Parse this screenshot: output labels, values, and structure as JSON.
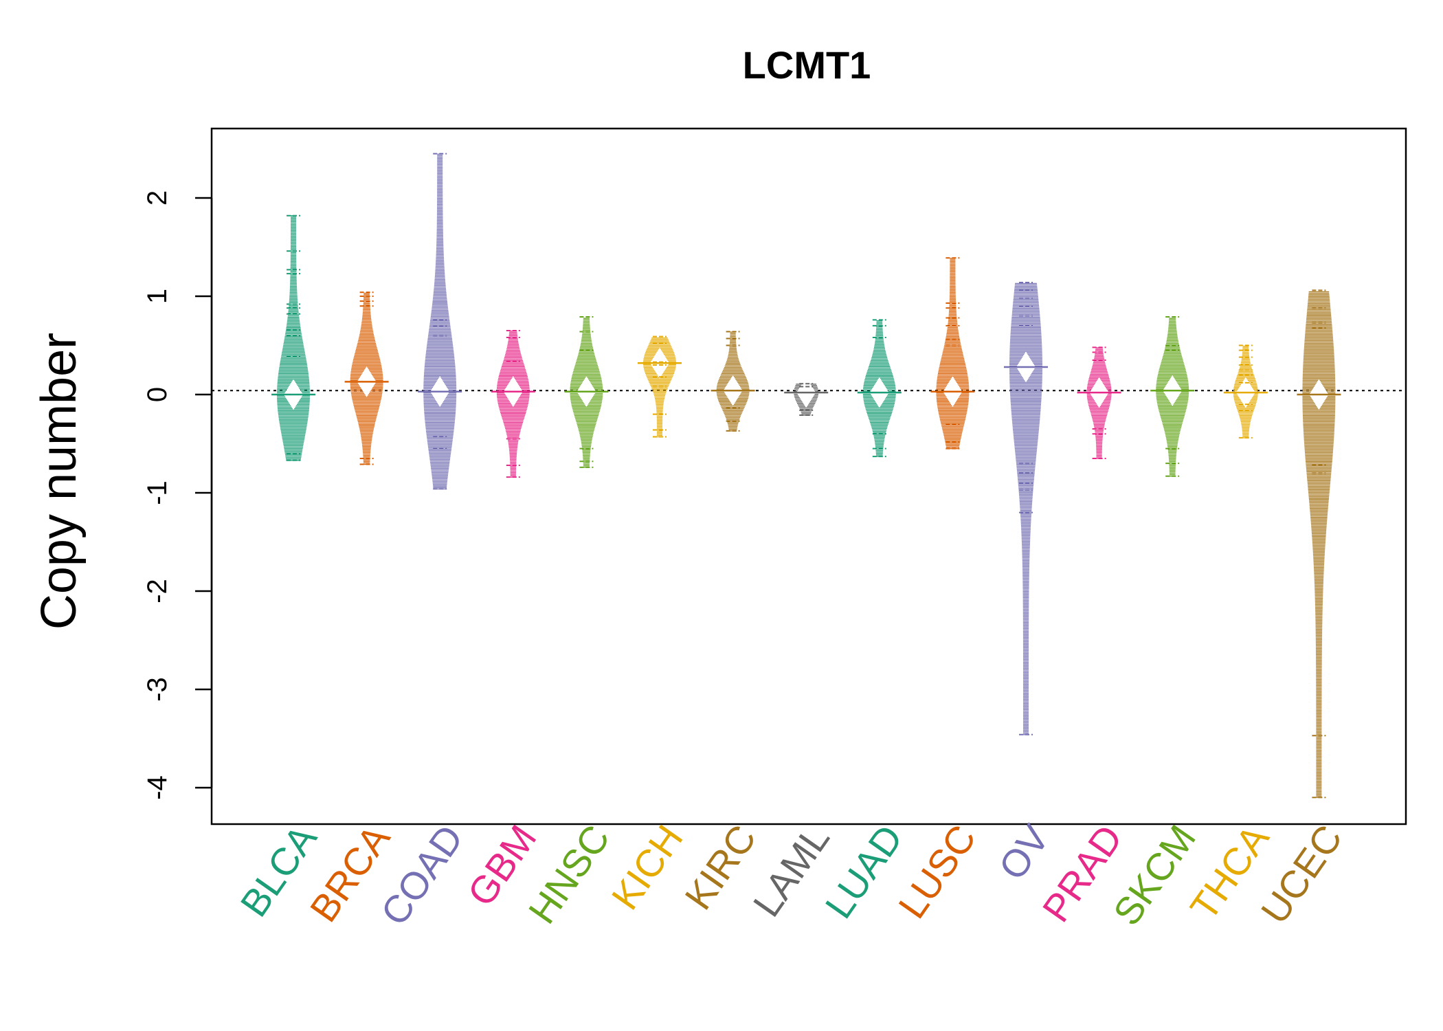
{
  "chart_data": {
    "type": "beanplot",
    "title": "LCMT1",
    "xlabel": "",
    "ylabel": "Copy number",
    "ylim": [
      -4.3,
      2.7
    ],
    "yticks": [
      2,
      1,
      0,
      -1,
      -2,
      -3,
      -4
    ],
    "reference_line": 0.04,
    "categories": [
      "BLCA",
      "BRCA",
      "COAD",
      "GBM",
      "HNSC",
      "KICH",
      "KIRC",
      "LAML",
      "LUAD",
      "LUSC",
      "OV",
      "PRAD",
      "SKCM",
      "THCA",
      "UCEC"
    ],
    "colors": [
      "#1b9e77",
      "#d95f02",
      "#7570b3",
      "#e7298a",
      "#66a61e",
      "#e6ab02",
      "#a6761d",
      "#666666",
      "#1b9e77",
      "#d95f02",
      "#7570b3",
      "#e7298a",
      "#66a61e",
      "#e6ab02",
      "#a6761d"
    ],
    "series": [
      {
        "name": "BLCA",
        "min": -0.67,
        "max": 1.82,
        "mean": 0.0,
        "outliers": [
          1.82,
          1.46,
          1.27,
          1.23,
          0.92,
          0.88,
          0.82,
          0.66,
          0.6,
          0.39,
          -0.6,
          -0.67
        ]
      },
      {
        "name": "BRCA",
        "min": -0.71,
        "max": 1.04,
        "mean": 0.13,
        "outliers": [
          1.04,
          1.0,
          0.95,
          0.9,
          -0.65,
          -0.71
        ]
      },
      {
        "name": "COAD",
        "min": -0.96,
        "max": 2.45,
        "mean": 0.03,
        "outliers": [
          2.45,
          0.76,
          0.7,
          0.6,
          -0.43,
          -0.55,
          -0.96
        ]
      },
      {
        "name": "GBM",
        "min": -0.84,
        "max": 0.65,
        "mean": 0.03,
        "outliers": [
          0.65,
          0.58,
          0.34,
          -0.45,
          -0.72,
          -0.84
        ]
      },
      {
        "name": "HNSC",
        "min": -0.74,
        "max": 0.79,
        "mean": 0.03,
        "outliers": [
          0.79,
          0.64,
          0.45,
          -0.55,
          -0.68,
          -0.74
        ]
      },
      {
        "name": "KICH",
        "min": -0.43,
        "max": 0.59,
        "mean": 0.32,
        "outliers": [
          0.59,
          0.52,
          0.33,
          0.3,
          0.18,
          0.08,
          -0.2,
          -0.36,
          -0.43
        ]
      },
      {
        "name": "KIRC",
        "min": -0.37,
        "max": 0.64,
        "mean": 0.04,
        "outliers": [
          0.64,
          0.57,
          0.5,
          -0.14,
          -0.27,
          -0.37
        ]
      },
      {
        "name": "LAML",
        "min": -0.21,
        "max": 0.11,
        "mean": 0.02,
        "outliers": [
          0.11,
          0.08,
          -0.16,
          -0.21
        ]
      },
      {
        "name": "LUAD",
        "min": -0.63,
        "max": 0.76,
        "mean": 0.02,
        "outliers": [
          0.76,
          0.7,
          0.58,
          -0.4,
          -0.55,
          -0.63
        ]
      },
      {
        "name": "LUSC",
        "min": -0.55,
        "max": 1.39,
        "mean": 0.03,
        "outliers": [
          1.39,
          0.93,
          0.88,
          0.78,
          0.7,
          0.56,
          0.5,
          -0.3,
          -0.48,
          -0.55
        ]
      },
      {
        "name": "OV",
        "min": -3.46,
        "max": 1.14,
        "mean": 0.28,
        "outliers": [
          1.14,
          1.06,
          0.98,
          0.9,
          0.8,
          0.7,
          -0.7,
          -0.8,
          -0.9,
          -0.97,
          -1.2,
          -3.46
        ]
      },
      {
        "name": "PRAD",
        "min": -0.65,
        "max": 0.48,
        "mean": 0.02,
        "outliers": [
          0.48,
          0.43,
          0.35,
          -0.35,
          -0.4,
          -0.65
        ]
      },
      {
        "name": "SKCM",
        "min": -0.83,
        "max": 0.79,
        "mean": 0.04,
        "outliers": [
          0.79,
          0.5,
          0.45,
          -0.55,
          -0.7,
          -0.83
        ]
      },
      {
        "name": "THCA",
        "min": -0.44,
        "max": 0.5,
        "mean": 0.02,
        "outliers": [
          0.5,
          0.45,
          0.38,
          0.3,
          0.25,
          0.2,
          0.12,
          -0.1,
          -0.16,
          -0.44
        ]
      },
      {
        "name": "UCEC",
        "min": -4.1,
        "max": 1.06,
        "mean": 0.0,
        "outliers": [
          1.06,
          0.88,
          0.73,
          0.68,
          -0.72,
          -0.8,
          -3.47,
          -4.1
        ]
      }
    ]
  }
}
